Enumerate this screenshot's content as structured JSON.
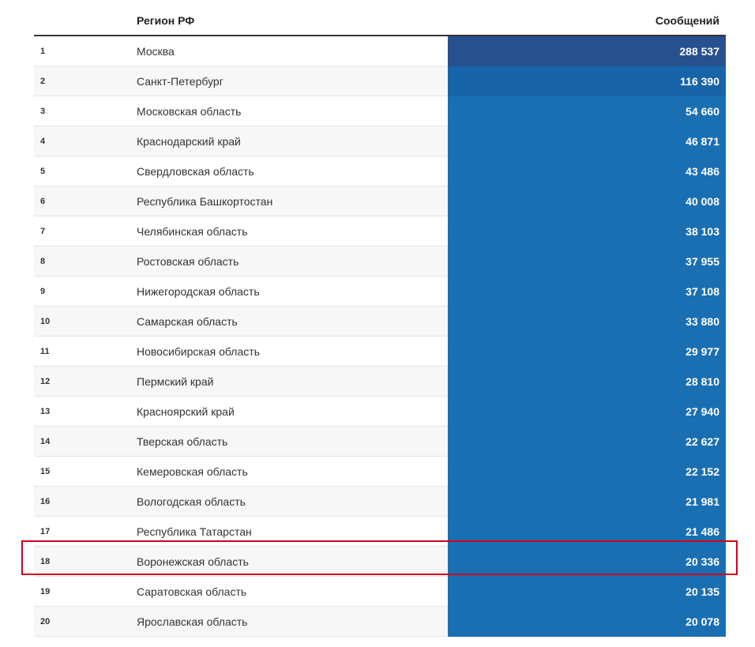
{
  "table": {
    "header": {
      "rank": "",
      "region": "Регион РФ",
      "count": "Сообщений"
    },
    "bar_colors": {
      "first": "#27508e",
      "second": "#1765a8",
      "rest": "#1a6fb3"
    },
    "highlight_color": "#d0021b",
    "highlighted_rank": "18",
    "rows": [
      {
        "rank": "1",
        "region": "Москва",
        "count": "288 537",
        "value": 288537
      },
      {
        "rank": "2",
        "region": "Санкт-Петербург",
        "count": "116 390",
        "value": 116390
      },
      {
        "rank": "3",
        "region": "Московская область",
        "count": "54 660",
        "value": 54660
      },
      {
        "rank": "4",
        "region": "Краснодарский край",
        "count": "46 871",
        "value": 46871
      },
      {
        "rank": "5",
        "region": "Свердловская область",
        "count": "43 486",
        "value": 43486
      },
      {
        "rank": "6",
        "region": "Республика Башкортостан",
        "count": "40 008",
        "value": 40008
      },
      {
        "rank": "7",
        "region": "Челябинская область",
        "count": "38 103",
        "value": 38103
      },
      {
        "rank": "8",
        "region": "Ростовская область",
        "count": "37 955",
        "value": 37955
      },
      {
        "rank": "9",
        "region": "Нижегородская область",
        "count": "37 108",
        "value": 37108
      },
      {
        "rank": "10",
        "region": "Самарская область",
        "count": "33 880",
        "value": 33880
      },
      {
        "rank": "11",
        "region": "Новосибирская область",
        "count": "29 977",
        "value": 29977
      },
      {
        "rank": "12",
        "region": "Пермский край",
        "count": "28 810",
        "value": 28810
      },
      {
        "rank": "13",
        "region": "Красноярский край",
        "count": "27 940",
        "value": 27940
      },
      {
        "rank": "14",
        "region": "Тверская область",
        "count": "22 627",
        "value": 22627
      },
      {
        "rank": "15",
        "region": "Кемеровская область",
        "count": "22 152",
        "value": 22152
      },
      {
        "rank": "16",
        "region": "Вологодская область",
        "count": "21 981",
        "value": 21981
      },
      {
        "rank": "17",
        "region": "Республика Татарстан",
        "count": "21 486",
        "value": 21486
      },
      {
        "rank": "18",
        "region": "Воронежская область",
        "count": "20 336",
        "value": 20336
      },
      {
        "rank": "19",
        "region": "Саратовская область",
        "count": "20 135",
        "value": 20135
      },
      {
        "rank": "20",
        "region": "Ярославская область",
        "count": "20 078",
        "value": 20078
      }
    ]
  }
}
